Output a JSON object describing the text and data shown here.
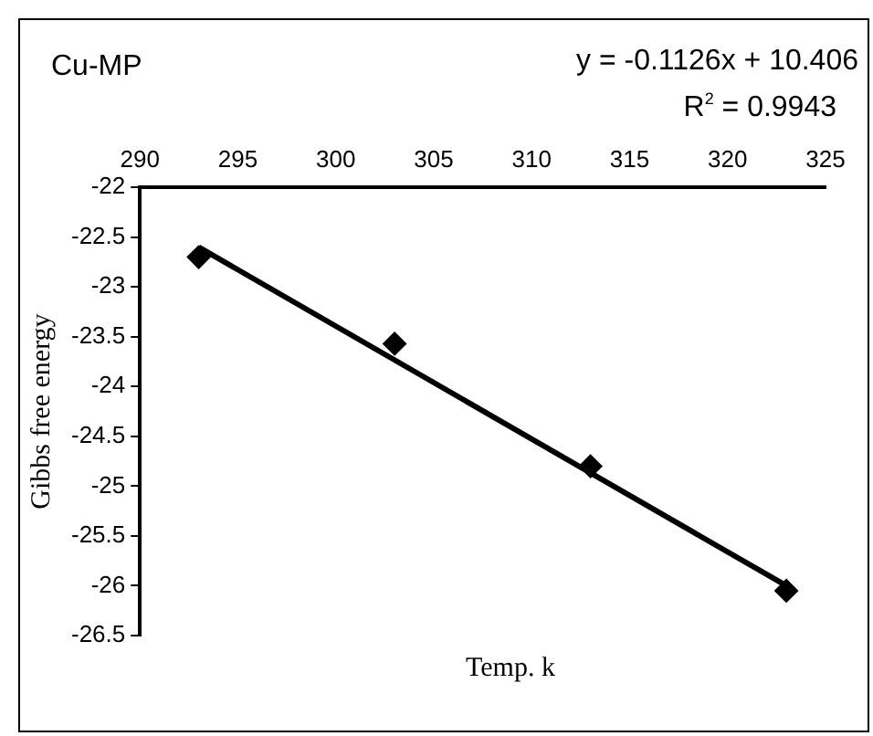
{
  "chart_data": {
    "type": "scatter",
    "title": "Cu-MP",
    "xlabel": "Temp. k",
    "ylabel": "Gibbs free energy",
    "annotations": [
      "y = -0.1126x + 10.406",
      "R$^{2}$ = 0.9943"
    ],
    "series": [
      {
        "color": "#000000",
        "marker": "diamond",
        "x": [
          293,
          303,
          313,
          323
        ],
        "values": [
          -22.7,
          -23.57,
          -24.8,
          -26.05
        ]
      },
      {
        "type": "line",
        "color": "#000000",
        "marker": "none",
        "x": [
          293,
          323
        ],
        "values": [
          -22.6,
          -26.0
        ]
      }
    ],
    "xlim": [
      290,
      325
    ],
    "xticks": [
      290,
      295,
      300,
      305,
      310,
      315,
      320,
      325
    ],
    "ylim": [
      -26.5,
      -22
    ],
    "yticks": [
      -22,
      -22.5,
      -23,
      -23.5,
      -24,
      -24.5,
      -25,
      -25.5,
      -26,
      -26.5
    ],
    "grid": false,
    "legend": false
  }
}
